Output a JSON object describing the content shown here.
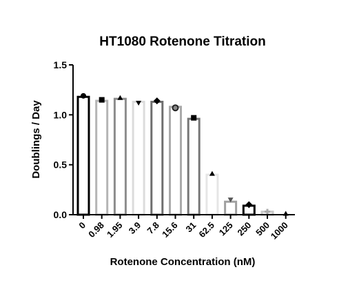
{
  "chart_data": {
    "type": "bar",
    "title": "HT1080 Rotenone Titration",
    "xlabel": "Rotenone Concentration (nM)",
    "ylabel": "Doublings / Day",
    "ylim": [
      0,
      1.5
    ],
    "yticks": [
      "0.0",
      "0.5",
      "1.0",
      "1.5"
    ],
    "grid": false,
    "categories": [
      "0",
      "0.98",
      "1.95",
      "3.9",
      "7.8",
      "15.6",
      "31",
      "62.5",
      "125",
      "250",
      "500",
      "1000"
    ],
    "values": [
      1.18,
      1.14,
      1.16,
      1.13,
      1.13,
      1.08,
      0.96,
      0.4,
      0.13,
      0.09,
      0.03,
      0.0
    ],
    "markers": [
      {
        "value": 1.19,
        "shape": "circle"
      },
      {
        "value": 1.15,
        "shape": "square"
      },
      {
        "value": 1.17,
        "shape": "triangle-up"
      },
      {
        "value": 1.12,
        "shape": "triangle-down"
      },
      {
        "value": 1.14,
        "shape": "diamond"
      },
      {
        "value": 1.07,
        "shape": "circle-ring"
      },
      {
        "value": 0.97,
        "shape": "square"
      },
      {
        "value": 0.41,
        "shape": "triangle-up"
      },
      {
        "value": 0.15,
        "shape": "triangle-down"
      },
      {
        "value": 0.1,
        "shape": "diamond"
      },
      {
        "value": 0.03,
        "shape": "cross"
      },
      {
        "value": 0.01,
        "shape": "triangle-up"
      }
    ],
    "bar_colors": [
      "#000000",
      "#b4b4b4",
      "#8c8c8c",
      "#dcdcdc",
      "#6e6e6e",
      "#aaaaaa",
      "#777777",
      "#e6e6e6",
      "#a0a0a0",
      "#000000",
      "#c8c8c8",
      "#9a9a9a"
    ],
    "marker_colors": [
      "#000000",
      "#000000",
      "#000000",
      "#000000",
      "#000000",
      "#222222",
      "#000000",
      "#000000",
      "#555555",
      "#000000",
      "#aaaaaa",
      "#000000"
    ]
  }
}
